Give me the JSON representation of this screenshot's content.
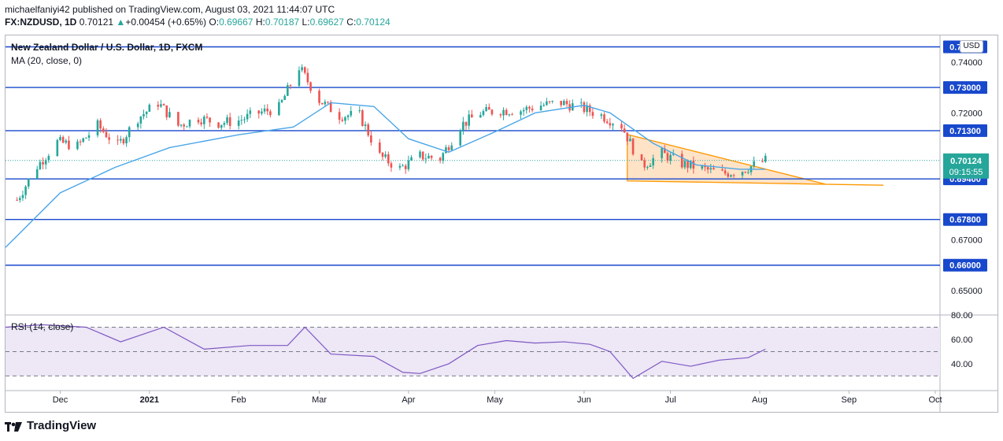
{
  "header": {
    "publisher_line": "michaelfaniyi42 published on TradingView.com, August 03, 2021 11:44:07 UTC",
    "symbol": "FX:NZDUSD, 1D",
    "last": "0.70121",
    "change": "+0.00454 (+0.65%)",
    "o_label": "O:",
    "o": "0.69667",
    "h_label": "H:",
    "h": "0.70187",
    "l_label": "L:",
    "l": "0.69627",
    "c_label": "C:",
    "c": "0.70124"
  },
  "legend": {
    "title": "New Zealand Dollar / U.S. Dollar, 1D, FXCM",
    "ma": "MA (20, close, 0)",
    "rsi": "RSI (14, close)"
  },
  "currency_label": "USD",
  "footer": {
    "brand": "TradingView"
  },
  "colors": {
    "up": "#26a69a",
    "down": "#ef5350",
    "ma": "#4aa6e8",
    "hline": "#1848cc",
    "triangle_stroke": "#ff9800",
    "triangle_fill": "#ffcc99",
    "rsi_line": "#7e57c2",
    "rsi_band": "#ede7f6",
    "last_price": "#26a69a"
  },
  "chart_data": {
    "type": "candlestick",
    "price_axis": {
      "ticks": [
        "0.74000",
        "0.72000",
        "0.70000",
        "0.67000",
        "0.65000"
      ],
      "ylim": [
        0.641,
        0.7505
      ]
    },
    "time_axis": {
      "labels": [
        "Dec",
        "2021",
        "Feb",
        "Mar",
        "Apr",
        "May",
        "Jun",
        "Jul",
        "Aug",
        "Sep",
        "Oct"
      ]
    },
    "horizontal_levels": [
      {
        "price": 0.746,
        "label": "0.74600"
      },
      {
        "price": 0.73,
        "label": "0.73000"
      },
      {
        "price": 0.713,
        "label": "0.71300"
      },
      {
        "price": 0.694,
        "label": "0.69400"
      },
      {
        "price": 0.678,
        "label": "0.67800"
      },
      {
        "price": 0.66,
        "label": "0.66000"
      }
    ],
    "last_price": {
      "price": 0.70124,
      "label": "0.70124",
      "countdown": "09:15:55"
    },
    "triangle": {
      "start_date": "2021-06-16",
      "end_date": "2021-09-13",
      "top_start": 0.7115,
      "bottom_start": 0.6932,
      "bottom_end": 0.6915
    },
    "closes": [
      [
        "2020-11-16",
        0.6857
      ],
      [
        "2020-11-23",
        0.699
      ],
      [
        "2020-11-30",
        0.7085
      ],
      [
        "2020-12-07",
        0.707
      ],
      [
        "2020-12-14",
        0.715
      ],
      [
        "2020-12-21",
        0.707
      ],
      [
        "2020-12-28",
        0.718
      ],
      [
        "2021-01-04",
        0.724
      ],
      [
        "2021-01-11",
        0.715
      ],
      [
        "2021-01-18",
        0.718
      ],
      [
        "2021-01-25",
        0.716
      ],
      [
        "2021-02-01",
        0.717
      ],
      [
        "2021-02-08",
        0.72
      ],
      [
        "2021-02-15",
        0.722
      ],
      [
        "2021-02-22",
        0.738
      ],
      [
        "2021-03-01",
        0.725
      ],
      [
        "2021-03-08",
        0.719
      ],
      [
        "2021-03-15",
        0.719
      ],
      [
        "2021-03-22",
        0.703
      ],
      [
        "2021-03-29",
        0.698
      ],
      [
        "2021-04-05",
        0.703
      ],
      [
        "2021-04-12",
        0.702
      ],
      [
        "2021-04-19",
        0.715
      ],
      [
        "2021-04-26",
        0.72
      ],
      [
        "2021-05-03",
        0.721
      ],
      [
        "2021-05-10",
        0.721
      ],
      [
        "2021-05-17",
        0.723
      ],
      [
        "2021-05-24",
        0.724
      ],
      [
        "2021-05-31",
        0.722
      ],
      [
        "2021-06-07",
        0.719
      ],
      [
        "2021-06-14",
        0.715
      ],
      [
        "2021-06-21",
        0.699
      ],
      [
        "2021-06-28",
        0.704
      ],
      [
        "2021-07-05",
        0.7
      ],
      [
        "2021-07-12",
        0.698
      ],
      [
        "2021-07-19",
        0.696
      ],
      [
        "2021-07-26",
        0.6975
      ],
      [
        "2021-08-03",
        0.70124
      ]
    ],
    "ma_20": [
      [
        "2020-11-12",
        0.667
      ],
      [
        "2020-12-01",
        0.6885
      ],
      [
        "2020-12-20",
        0.6985
      ],
      [
        "2021-01-08",
        0.7063
      ],
      [
        "2021-02-01",
        0.7114
      ],
      [
        "2021-02-20",
        0.7144
      ],
      [
        "2021-03-05",
        0.724
      ],
      [
        "2021-03-20",
        0.7225
      ],
      [
        "2021-04-01",
        0.7098
      ],
      [
        "2021-04-15",
        0.7045
      ],
      [
        "2021-05-01",
        0.7125
      ],
      [
        "2021-05-15",
        0.72
      ],
      [
        "2021-06-01",
        0.723
      ],
      [
        "2021-06-10",
        0.72
      ],
      [
        "2021-06-25",
        0.708
      ],
      [
        "2021-07-10",
        0.6995
      ],
      [
        "2021-07-25",
        0.6978
      ],
      [
        "2021-08-03",
        0.6978
      ]
    ],
    "rsi": {
      "axis_ticks": [
        "80.00",
        "60.00",
        "40.00"
      ],
      "ylim": [
        18,
        80
      ],
      "bands": [
        70,
        50,
        30
      ],
      "values": [
        [
          "2020-11-12",
          70
        ],
        [
          "2020-11-25",
          72
        ],
        [
          "2020-12-10",
          70
        ],
        [
          "2020-12-22",
          58
        ],
        [
          "2021-01-06",
          70
        ],
        [
          "2021-01-20",
          52
        ],
        [
          "2021-02-05",
          55
        ],
        [
          "2021-02-18",
          55
        ],
        [
          "2021-02-24",
          70
        ],
        [
          "2021-03-05",
          48
        ],
        [
          "2021-03-20",
          46
        ],
        [
          "2021-03-30",
          33
        ],
        [
          "2021-04-05",
          32
        ],
        [
          "2021-04-15",
          40
        ],
        [
          "2021-04-25",
          55
        ],
        [
          "2021-05-05",
          59
        ],
        [
          "2021-05-15",
          57
        ],
        [
          "2021-05-25",
          58
        ],
        [
          "2021-06-03",
          56
        ],
        [
          "2021-06-10",
          50
        ],
        [
          "2021-06-18",
          28
        ],
        [
          "2021-06-28",
          42
        ],
        [
          "2021-07-08",
          38
        ],
        [
          "2021-07-18",
          43
        ],
        [
          "2021-07-28",
          45
        ],
        [
          "2021-08-03",
          52
        ]
      ]
    }
  }
}
